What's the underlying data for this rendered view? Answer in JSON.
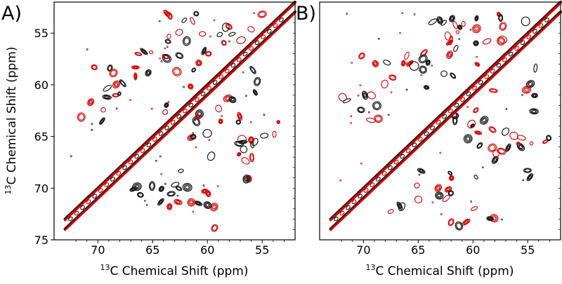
{
  "chart_data": [
    {
      "type": "contour",
      "panel_label": "A)",
      "xlabel": "13C Chemical Shift (ppm)",
      "ylabel": "13C Chemical Shift (ppm)",
      "xlim": [
        74,
        52
      ],
      "ylim": [
        52,
        75
      ],
      "xticks": [
        70,
        65,
        60,
        55
      ],
      "yticks": [
        55,
        60,
        65,
        70,
        75
      ],
      "series": [
        {
          "name": "black spectrum",
          "color": "#1a1a1a"
        },
        {
          "name": "red spectrum",
          "color": "#d40000"
        }
      ]
    },
    {
      "type": "contour",
      "panel_label": "B)",
      "xlabel": "13C Chemical Shift (ppm)",
      "xlim": [
        74,
        52
      ],
      "ylim": [
        52,
        75
      ],
      "xticks": [
        70,
        65,
        60,
        55
      ],
      "series": [
        {
          "name": "black spectrum",
          "color": "#1a1a1a"
        },
        {
          "name": "red spectrum",
          "color": "#d40000"
        }
      ]
    }
  ]
}
